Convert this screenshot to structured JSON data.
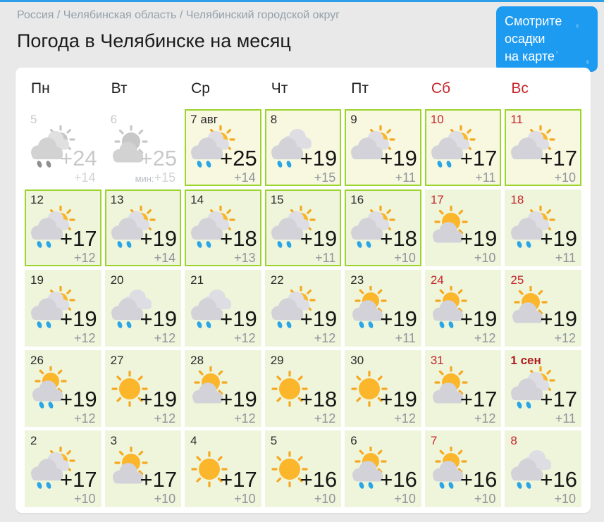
{
  "page": {
    "breadcrumb": "Россия / Челябинская область / Челябинский городской округ",
    "title": "Погода в Челябинске на месяц",
    "map_button": {
      "line1": "Смотрите осадки",
      "line2": "на карте"
    }
  },
  "colors": {
    "accent_blue": "#1d9bf1",
    "top_line_blue": "#2b9fe8",
    "outline_green": "#9cd42e",
    "weekend_red": "#c5262c",
    "cell_bg": "#eef5db",
    "cell_bg_current": "#f8f8e1",
    "sun_yellow": "#fbb62c",
    "cloud_gray": "#d2d2d8",
    "rain_blue": "#2aa5e6"
  },
  "calendar": {
    "weekday_headers": [
      {
        "label": "Пн",
        "weekend": false
      },
      {
        "label": "Вт",
        "weekend": false
      },
      {
        "label": "Ср",
        "weekend": false
      },
      {
        "label": "Чт",
        "weekend": false
      },
      {
        "label": "Пт",
        "weekend": false
      },
      {
        "label": "Сб",
        "weekend": true
      },
      {
        "label": "Вс",
        "weekend": true
      }
    ],
    "days": [
      {
        "label": "5",
        "high": "+24",
        "low": "+14",
        "icon": "cloud-sun-rain",
        "muted": true,
        "weekend": false,
        "outlined": false
      },
      {
        "label": "6",
        "high": "+25",
        "low": "+15",
        "low_prefix": "мин:",
        "icon": "sun-cloud",
        "muted": true,
        "weekend": false,
        "outlined": false
      },
      {
        "label": "7 авг",
        "high": "+25",
        "low": "+14",
        "icon": "cloud-sun-rain",
        "outlined": true,
        "weekend": false
      },
      {
        "label": "8",
        "high": "+19",
        "low": "+15",
        "icon": "clouds-rain",
        "outlined": true,
        "weekend": false
      },
      {
        "label": "9",
        "high": "+19",
        "low": "+11",
        "icon": "cloud-sun",
        "outlined": true,
        "weekend": false
      },
      {
        "label": "10",
        "high": "+17",
        "low": "+11",
        "icon": "cloud-sun-rain",
        "outlined": true,
        "weekend": true
      },
      {
        "label": "11",
        "high": "+17",
        "low": "+10",
        "icon": "cloud-sun",
        "outlined": true,
        "weekend": true
      },
      {
        "label": "12",
        "high": "+17",
        "low": "+12",
        "icon": "cloud-sun-rain",
        "outlined": true,
        "weekend": false
      },
      {
        "label": "13",
        "high": "+19",
        "low": "+14",
        "icon": "cloud-sun-rain",
        "outlined": true,
        "weekend": false
      },
      {
        "label": "14",
        "high": "+18",
        "low": "+13",
        "icon": "cloud-sun-rain",
        "outlined": true,
        "weekend": false
      },
      {
        "label": "15",
        "high": "+19",
        "low": "+11",
        "icon": "cloud-sun-rain",
        "outlined": true,
        "weekend": false
      },
      {
        "label": "16",
        "high": "+18",
        "low": "+10",
        "icon": "cloud-sun-rain",
        "outlined": true,
        "weekend": false
      },
      {
        "label": "17",
        "high": "+19",
        "low": "+10",
        "icon": "sun-cloud",
        "outlined": false,
        "weekend": true
      },
      {
        "label": "18",
        "high": "+19",
        "low": "+11",
        "icon": "cloud-sun-rain",
        "outlined": false,
        "weekend": true
      },
      {
        "label": "19",
        "high": "+19",
        "low": "+12",
        "icon": "cloud-sun-rain",
        "outlined": false,
        "weekend": false
      },
      {
        "label": "20",
        "high": "+19",
        "low": "+12",
        "icon": "clouds-rain",
        "outlined": false,
        "weekend": false
      },
      {
        "label": "21",
        "high": "+19",
        "low": "+12",
        "icon": "clouds-rain",
        "outlined": false,
        "weekend": false
      },
      {
        "label": "22",
        "high": "+19",
        "low": "+12",
        "icon": "cloud-sun-rain",
        "outlined": false,
        "weekend": false
      },
      {
        "label": "23",
        "high": "+19",
        "low": "+11",
        "icon": "sun-cloud-rain",
        "outlined": false,
        "weekend": false
      },
      {
        "label": "24",
        "high": "+19",
        "low": "+12",
        "icon": "sun-cloud-rain",
        "outlined": false,
        "weekend": true
      },
      {
        "label": "25",
        "high": "+19",
        "low": "+12",
        "icon": "sun-cloud",
        "outlined": false,
        "weekend": true
      },
      {
        "label": "26",
        "high": "+19",
        "low": "+12",
        "icon": "sun-cloud-rain",
        "outlined": false,
        "weekend": false
      },
      {
        "label": "27",
        "high": "+19",
        "low": "+12",
        "icon": "sunny",
        "outlined": false,
        "weekend": false
      },
      {
        "label": "28",
        "high": "+19",
        "low": "+12",
        "icon": "sun-cloud",
        "outlined": false,
        "weekend": false
      },
      {
        "label": "29",
        "high": "+18",
        "low": "+12",
        "icon": "sunny",
        "outlined": false,
        "weekend": false
      },
      {
        "label": "30",
        "high": "+19",
        "low": "+12",
        "icon": "sunny",
        "outlined": false,
        "weekend": false
      },
      {
        "label": "31",
        "high": "+17",
        "low": "+12",
        "icon": "sun-cloud",
        "outlined": false,
        "weekend": true
      },
      {
        "label": "1 сен",
        "high": "+17",
        "low": "+11",
        "icon": "cloud-sun-rain",
        "outlined": false,
        "weekend": true,
        "bold": true
      },
      {
        "label": "2",
        "high": "+17",
        "low": "+10",
        "icon": "cloud-sun-rain",
        "outlined": false,
        "weekend": false
      },
      {
        "label": "3",
        "high": "+17",
        "low": "+10",
        "icon": "sun-cloud",
        "outlined": false,
        "weekend": false
      },
      {
        "label": "4",
        "high": "+17",
        "low": "+10",
        "icon": "sunny",
        "outlined": false,
        "weekend": false
      },
      {
        "label": "5",
        "high": "+16",
        "low": "+10",
        "icon": "sunny",
        "outlined": false,
        "weekend": false
      },
      {
        "label": "6",
        "high": "+16",
        "low": "+10",
        "icon": "sun-cloud-rain",
        "outlined": false,
        "weekend": false
      },
      {
        "label": "7",
        "high": "+16",
        "low": "+10",
        "icon": "sun-cloud-rain",
        "outlined": false,
        "weekend": true
      },
      {
        "label": "8",
        "high": "+16",
        "low": "+10",
        "icon": "clouds-rain",
        "outlined": false,
        "weekend": true
      }
    ]
  }
}
